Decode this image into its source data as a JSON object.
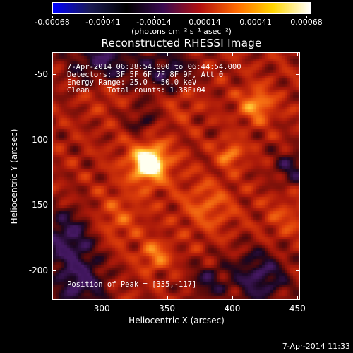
{
  "colorbar": {
    "tick_labels": [
      "-0.00068",
      "-0.00041",
      "-0.00014",
      "0.00014",
      "0.00041",
      "0.00068"
    ],
    "units": "(photons cm⁻² s⁻¹ asec⁻²)",
    "colors": [
      "#0000ff",
      "#1a1a55",
      "#000000",
      "#3a0a50",
      "#b21010",
      "#ff6a00",
      "#ffd600",
      "#ffffff"
    ]
  },
  "title": "Reconstructed RHESSI Image",
  "info": {
    "time_range": "7-Apr-2014 06:38:54.000 to 06:44:54.000",
    "detectors": "Detectors: 3F 5F 6F 7F 8F 9F, Att 0",
    "energy": "Energy Range: 25.0 - 50.0 keV",
    "clean": "Clean    Total counts: 1.38E+04",
    "peak": "Position of Peak = [335,-117]"
  },
  "chart_data": {
    "type": "heatmap",
    "title": "Reconstructed RHESSI Image",
    "xlabel": "Heliocentric X (arcsec)",
    "ylabel": "Heliocentric Y (arcsec)",
    "xlim": [
      262,
      452
    ],
    "ylim": [
      -223,
      -33
    ],
    "xticks": [
      "300",
      "350",
      "400",
      "450"
    ],
    "yticks": [
      "-50",
      "-100",
      "-150",
      "-200"
    ],
    "colorbar_range": [
      -0.00068,
      0.00068
    ],
    "peak": [
      335,
      -117
    ]
  },
  "footer": "7-Apr-2014 11:33"
}
